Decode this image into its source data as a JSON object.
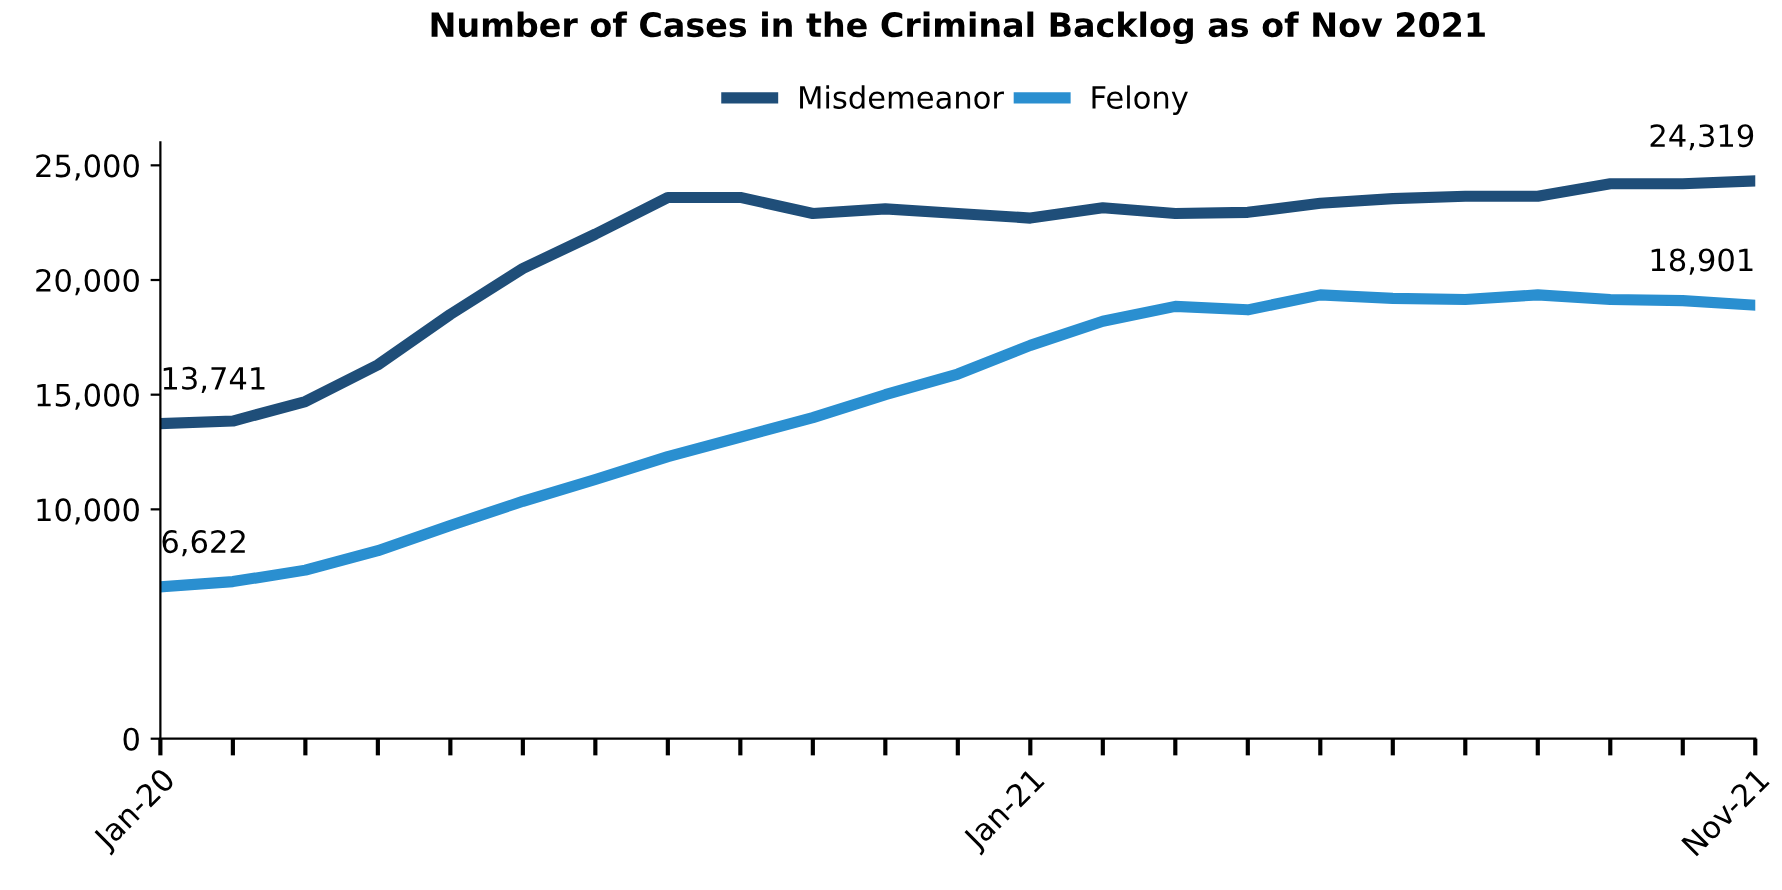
{
  "chart_data": {
    "type": "line",
    "title": "Number of Cases in the Criminal Backlog as of Nov 2021",
    "categories": [
      "Jan-20",
      null,
      null,
      null,
      null,
      null,
      null,
      null,
      null,
      null,
      null,
      null,
      "Jan-21",
      null,
      null,
      null,
      null,
      null,
      null,
      null,
      null,
      null,
      "Nov-21"
    ],
    "series": [
      {
        "name": "Misdemeanor",
        "color": "#1f4e79",
        "values": [
          13741,
          13850,
          14700,
          16300,
          18500,
          20500,
          22000,
          23600,
          23600,
          22900,
          23100,
          22900,
          22700,
          23150,
          22900,
          22950,
          23350,
          23550,
          23650,
          23650,
          24200,
          24200,
          24319
        ],
        "value_labels": [
          "13,741",
          null,
          null,
          null,
          null,
          null,
          null,
          null,
          null,
          null,
          null,
          null,
          null,
          null,
          null,
          null,
          null,
          null,
          null,
          null,
          null,
          null,
          "24,319"
        ]
      },
      {
        "name": "Felony",
        "color": "#2a8fd0",
        "values": [
          6622,
          6850,
          7350,
          8200,
          9300,
          10350,
          11300,
          12300,
          13150,
          14000,
          15000,
          15900,
          17150,
          18200,
          18850,
          18700,
          19350,
          19200,
          19150,
          19350,
          19150,
          19100,
          18901
        ],
        "value_labels": [
          "6,622",
          null,
          null,
          null,
          null,
          null,
          null,
          null,
          null,
          null,
          null,
          null,
          null,
          null,
          null,
          null,
          null,
          null,
          null,
          null,
          null,
          null,
          "18,901"
        ]
      }
    ],
    "ylim": [
      0,
      26000
    ],
    "yticks": [
      0,
      {
        "value": 10000,
        "label": "10,000"
      },
      {
        "value": 15000,
        "label": "15,000"
      },
      {
        "value": 20000,
        "label": "20,000"
      },
      {
        "value": 25000,
        "label": "25,000"
      }
    ],
    "legend": "top",
    "grid": false,
    "marker": "none",
    "line_style": "solid"
  }
}
